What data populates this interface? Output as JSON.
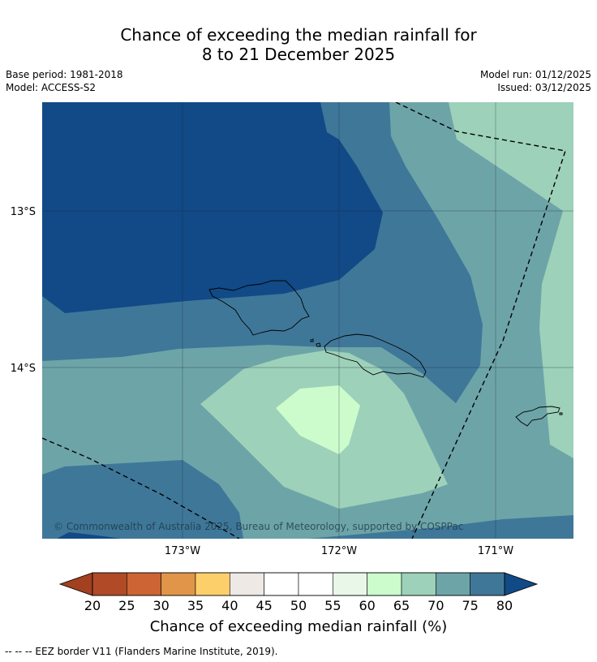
{
  "title": {
    "line1": "Chance of exceeding the median rainfall for",
    "line2": "8 to 21 December 2025"
  },
  "meta": {
    "base_period": "Base period: 1981-2018",
    "model": "Model: ACCESS-S2",
    "model_run": "Model run: 01/12/2025",
    "issued": "Issued: 03/12/2025"
  },
  "map": {
    "lat_labels": [
      "13°S",
      "14°S"
    ],
    "lon_labels": [
      "173°W",
      "172°W",
      "171°W"
    ],
    "copyright": "© Commonwealth of Australia 2025, Bureau of Meteorology, supported by COSPPac",
    "colors": {
      "gt80": "#114a86",
      "75_80": "#3f7799",
      "70_75": "#6da4a8",
      "65_70": "#9dd1b9",
      "60_65": "#ccfccc"
    }
  },
  "colorbar": {
    "ticks": [
      "20",
      "25",
      "30",
      "35",
      "40",
      "45",
      "50",
      "55",
      "60",
      "65",
      "70",
      "75",
      "80"
    ],
    "colors": [
      "#b04a27",
      "#cc6433",
      "#e09548",
      "#fdcf6b",
      "#eee9e5",
      "#ffffff",
      "#ffffff",
      "#e9f7e8",
      "#ccfccc",
      "#9dd1b9",
      "#6da4a8",
      "#3f7799"
    ],
    "under_color": "#a2401f",
    "over_color": "#114a86",
    "label": "Chance of exceeding median rainfall (%)"
  },
  "footer": "--  --  -- EEZ border V11 (Flanders Marine Institute, 2019)."
}
